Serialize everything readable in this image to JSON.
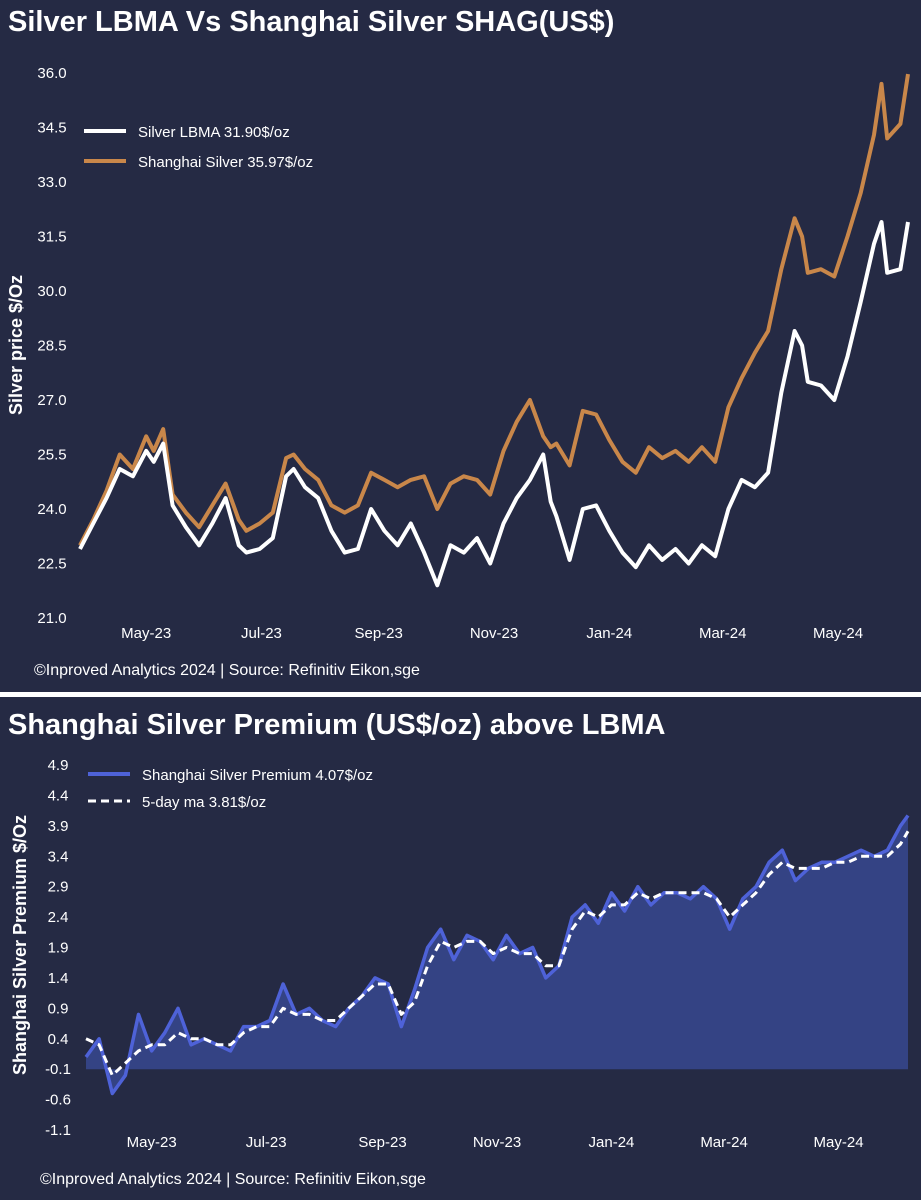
{
  "charts": [
    {
      "type": "line",
      "title": "Silver LBMA Vs Shanghai Silver SHAG(US$)",
      "ylabel": "Silver price $/Oz",
      "xlabel": "",
      "ylim": [
        21.0,
        36.0
      ],
      "yticks": [
        "21.0",
        "22.5",
        "24.0",
        "25.5",
        "27.0",
        "28.5",
        "30.0",
        "31.5",
        "33.0",
        "34.5",
        "36.0"
      ],
      "xticks": [
        "May-23",
        "Jul-23",
        "Sep-23",
        "Nov-23",
        "Jan-24",
        "Mar-24",
        "May-24"
      ],
      "legend": [
        "Silver LBMA 31.90$/oz",
        "Shanghai Silver 35.97$/oz"
      ],
      "source": "©Inproved Analytics 2024 | Source: Refinitiv Eikon,sge"
    },
    {
      "type": "area",
      "title": "Shanghai Silver Premium (US$/oz) above LBMA",
      "ylabel": "Shanghai Silver Premium $/Oz",
      "xlabel": "",
      "ylim": [
        -1.1,
        4.9
      ],
      "yticks": [
        "-1.1",
        "-0.6",
        "-0.1",
        "0.4",
        "0.9",
        "1.4",
        "1.9",
        "2.4",
        "2.9",
        "3.4",
        "3.9",
        "4.4",
        "4.9"
      ],
      "xticks": [
        "May-23",
        "Jul-23",
        "Sep-23",
        "Nov-23",
        "Jan-24",
        "Mar-24",
        "May-24"
      ],
      "legend": [
        "Shanghai Silver Premium 4.07$/oz",
        "5-day ma 3.81$/oz"
      ],
      "source": "©Inproved Analytics 2024 | Source: Refinitiv Eikon,sge"
    }
  ],
  "chart_data": [
    {
      "type": "line",
      "title": "Silver LBMA Vs Shanghai Silver SHAG(US$)",
      "xlabel": "",
      "ylabel": "Silver price $/Oz",
      "ylim": [
        21.0,
        36.0
      ],
      "x_range": [
        "2023-03-27",
        "2024-06-07"
      ],
      "x_ticks": [
        "May-23",
        "Jul-23",
        "Sep-23",
        "Nov-23",
        "Jan-24",
        "Mar-24",
        "May-24"
      ],
      "colors": {
        "lbma": "#ffffff",
        "shanghai": "#c9874a"
      },
      "series": [
        {
          "name": "Silver LBMA 31.90$/oz",
          "x": [
            "2023-03-27",
            "2023-04-03",
            "2023-04-10",
            "2023-04-17",
            "2023-04-24",
            "2023-05-01",
            "2023-05-05",
            "2023-05-10",
            "2023-05-15",
            "2023-05-22",
            "2023-05-29",
            "2023-06-05",
            "2023-06-12",
            "2023-06-19",
            "2023-06-23",
            "2023-06-30",
            "2023-07-07",
            "2023-07-14",
            "2023-07-18",
            "2023-07-24",
            "2023-07-31",
            "2023-08-07",
            "2023-08-14",
            "2023-08-21",
            "2023-08-28",
            "2023-09-04",
            "2023-09-11",
            "2023-09-18",
            "2023-09-25",
            "2023-10-02",
            "2023-10-09",
            "2023-10-16",
            "2023-10-23",
            "2023-10-30",
            "2023-11-06",
            "2023-11-13",
            "2023-11-20",
            "2023-11-27",
            "2023-12-01",
            "2023-12-04",
            "2023-12-11",
            "2023-12-18",
            "2023-12-25",
            "2024-01-01",
            "2024-01-08",
            "2024-01-15",
            "2024-01-22",
            "2024-01-29",
            "2024-02-05",
            "2024-02-12",
            "2024-02-19",
            "2024-02-26",
            "2024-03-04",
            "2024-03-11",
            "2024-03-18",
            "2024-03-25",
            "2024-04-01",
            "2024-04-08",
            "2024-04-12",
            "2024-04-15",
            "2024-04-22",
            "2024-04-29",
            "2024-05-06",
            "2024-05-13",
            "2024-05-20",
            "2024-05-24",
            "2024-05-27",
            "2024-06-03",
            "2024-06-07"
          ],
          "values": [
            22.9,
            23.6,
            24.3,
            25.1,
            24.9,
            25.6,
            25.3,
            25.8,
            24.1,
            23.5,
            23.0,
            23.6,
            24.3,
            23.0,
            22.8,
            22.9,
            23.2,
            24.9,
            25.1,
            24.6,
            24.3,
            23.4,
            22.8,
            22.9,
            24.0,
            23.4,
            23.0,
            23.6,
            22.8,
            21.9,
            23.0,
            22.8,
            23.2,
            22.5,
            23.6,
            24.3,
            24.8,
            25.5,
            24.2,
            23.8,
            22.6,
            24.0,
            24.1,
            23.4,
            22.8,
            22.4,
            23.0,
            22.6,
            22.9,
            22.5,
            23.0,
            22.7,
            24.0,
            24.8,
            24.6,
            25.0,
            27.2,
            28.9,
            28.5,
            27.5,
            27.4,
            27.0,
            28.2,
            29.7,
            31.3,
            31.9,
            30.5,
            30.6,
            31.9
          ]
        },
        {
          "name": "Shanghai Silver 35.97$/oz",
          "x": [
            "2023-03-27",
            "2023-04-03",
            "2023-04-10",
            "2023-04-17",
            "2023-04-24",
            "2023-05-01",
            "2023-05-05",
            "2023-05-10",
            "2023-05-15",
            "2023-05-22",
            "2023-05-29",
            "2023-06-05",
            "2023-06-12",
            "2023-06-19",
            "2023-06-23",
            "2023-06-30",
            "2023-07-07",
            "2023-07-14",
            "2023-07-18",
            "2023-07-24",
            "2023-07-31",
            "2023-08-07",
            "2023-08-14",
            "2023-08-21",
            "2023-08-28",
            "2023-09-04",
            "2023-09-11",
            "2023-09-18",
            "2023-09-25",
            "2023-10-02",
            "2023-10-09",
            "2023-10-16",
            "2023-10-23",
            "2023-10-30",
            "2023-11-06",
            "2023-11-13",
            "2023-11-20",
            "2023-11-27",
            "2023-12-01",
            "2023-12-04",
            "2023-12-11",
            "2023-12-18",
            "2023-12-25",
            "2024-01-01",
            "2024-01-08",
            "2024-01-15",
            "2024-01-22",
            "2024-01-29",
            "2024-02-05",
            "2024-02-12",
            "2024-02-19",
            "2024-02-26",
            "2024-03-04",
            "2024-03-11",
            "2024-03-18",
            "2024-03-25",
            "2024-04-01",
            "2024-04-08",
            "2024-04-12",
            "2024-04-15",
            "2024-04-22",
            "2024-04-29",
            "2024-05-06",
            "2024-05-13",
            "2024-05-20",
            "2024-05-24",
            "2024-05-27",
            "2024-06-03",
            "2024-06-07"
          ],
          "values": [
            23.0,
            23.7,
            24.5,
            25.5,
            25.1,
            26.0,
            25.6,
            26.2,
            24.4,
            23.9,
            23.5,
            24.1,
            24.7,
            23.7,
            23.4,
            23.6,
            23.9,
            25.4,
            25.5,
            25.1,
            24.8,
            24.1,
            23.9,
            24.1,
            25.0,
            24.8,
            24.6,
            24.8,
            24.9,
            24.0,
            24.7,
            24.9,
            24.8,
            24.4,
            25.6,
            26.4,
            27.0,
            26.0,
            25.7,
            25.8,
            25.2,
            26.7,
            26.6,
            25.9,
            25.3,
            25.0,
            25.7,
            25.4,
            25.6,
            25.3,
            25.7,
            25.3,
            26.8,
            27.6,
            28.3,
            28.9,
            30.6,
            32.0,
            31.5,
            30.5,
            30.6,
            30.4,
            31.5,
            32.7,
            34.3,
            35.7,
            34.2,
            34.6,
            35.97
          ]
        }
      ]
    },
    {
      "type": "area",
      "title": "Shanghai Silver Premium (US$/oz) above LBMA",
      "xlabel": "",
      "ylabel": "Shanghai Silver Premium $/Oz",
      "ylim": [
        -1.1,
        4.9
      ],
      "x_range": [
        "2023-03-27",
        "2024-06-07"
      ],
      "x_ticks": [
        "May-23",
        "Jul-23",
        "Sep-23",
        "Nov-23",
        "Jan-24",
        "Mar-24",
        "May-24"
      ],
      "colors": {
        "premium": "#4e62d8",
        "area": "#344384",
        "ma": "#ffffff"
      },
      "series": [
        {
          "name": "Shanghai Silver Premium 4.07$/oz",
          "x": [
            "2023-03-27",
            "2023-04-03",
            "2023-04-10",
            "2023-04-17",
            "2023-04-24",
            "2023-05-01",
            "2023-05-08",
            "2023-05-15",
            "2023-05-22",
            "2023-05-29",
            "2023-06-05",
            "2023-06-12",
            "2023-06-19",
            "2023-06-26",
            "2023-07-03",
            "2023-07-10",
            "2023-07-17",
            "2023-07-24",
            "2023-07-31",
            "2023-08-07",
            "2023-08-14",
            "2023-08-21",
            "2023-08-28",
            "2023-09-04",
            "2023-09-11",
            "2023-09-18",
            "2023-09-25",
            "2023-10-02",
            "2023-10-09",
            "2023-10-16",
            "2023-10-23",
            "2023-10-30",
            "2023-11-06",
            "2023-11-13",
            "2023-11-20",
            "2023-11-27",
            "2023-12-04",
            "2023-12-11",
            "2023-12-18",
            "2023-12-25",
            "2024-01-01",
            "2024-01-08",
            "2024-01-15",
            "2024-01-22",
            "2024-01-29",
            "2024-02-05",
            "2024-02-12",
            "2024-02-19",
            "2024-02-26",
            "2024-03-04",
            "2024-03-11",
            "2024-03-18",
            "2024-03-25",
            "2024-04-01",
            "2024-04-08",
            "2024-04-15",
            "2024-04-22",
            "2024-04-29",
            "2024-05-06",
            "2024-05-13",
            "2024-05-20",
            "2024-05-27",
            "2024-06-03",
            "2024-06-07"
          ],
          "values": [
            0.1,
            0.4,
            -0.5,
            -0.2,
            0.8,
            0.2,
            0.5,
            0.9,
            0.3,
            0.4,
            0.3,
            0.2,
            0.6,
            0.6,
            0.7,
            1.3,
            0.8,
            0.9,
            0.7,
            0.6,
            0.9,
            1.1,
            1.4,
            1.3,
            0.6,
            1.2,
            1.9,
            2.2,
            1.7,
            2.1,
            2.0,
            1.7,
            2.1,
            1.8,
            1.9,
            1.4,
            1.6,
            2.4,
            2.6,
            2.3,
            2.8,
            2.5,
            2.9,
            2.6,
            2.8,
            2.8,
            2.7,
            2.9,
            2.7,
            2.2,
            2.7,
            2.9,
            3.3,
            3.5,
            3.0,
            3.2,
            3.3,
            3.3,
            3.4,
            3.5,
            3.4,
            3.5,
            3.9,
            4.07
          ]
        },
        {
          "name": "5-day ma 3.81$/oz",
          "x": [
            "2023-03-27",
            "2023-04-03",
            "2023-04-10",
            "2023-04-17",
            "2023-04-24",
            "2023-05-01",
            "2023-05-08",
            "2023-05-15",
            "2023-05-22",
            "2023-05-29",
            "2023-06-05",
            "2023-06-12",
            "2023-06-19",
            "2023-06-26",
            "2023-07-03",
            "2023-07-10",
            "2023-07-17",
            "2023-07-24",
            "2023-07-31",
            "2023-08-07",
            "2023-08-14",
            "2023-08-21",
            "2023-08-28",
            "2023-09-04",
            "2023-09-11",
            "2023-09-18",
            "2023-09-25",
            "2023-10-02",
            "2023-10-09",
            "2023-10-16",
            "2023-10-23",
            "2023-10-30",
            "2023-11-06",
            "2023-11-13",
            "2023-11-20",
            "2023-11-27",
            "2023-12-04",
            "2023-12-11",
            "2023-12-18",
            "2023-12-25",
            "2024-01-01",
            "2024-01-08",
            "2024-01-15",
            "2024-01-22",
            "2024-01-29",
            "2024-02-05",
            "2024-02-12",
            "2024-02-19",
            "2024-02-26",
            "2024-03-04",
            "2024-03-11",
            "2024-03-18",
            "2024-03-25",
            "2024-04-01",
            "2024-04-08",
            "2024-04-15",
            "2024-04-22",
            "2024-04-29",
            "2024-05-06",
            "2024-05-13",
            "2024-05-20",
            "2024-05-27",
            "2024-06-03",
            "2024-06-07"
          ],
          "values": [
            0.4,
            0.3,
            -0.2,
            0.0,
            0.2,
            0.3,
            0.3,
            0.5,
            0.4,
            0.4,
            0.3,
            0.3,
            0.5,
            0.6,
            0.6,
            0.9,
            0.8,
            0.8,
            0.7,
            0.7,
            0.9,
            1.1,
            1.3,
            1.3,
            0.8,
            1.0,
            1.6,
            2.0,
            1.9,
            2.0,
            2.0,
            1.8,
            1.9,
            1.8,
            1.8,
            1.6,
            1.6,
            2.2,
            2.5,
            2.4,
            2.6,
            2.6,
            2.8,
            2.7,
            2.8,
            2.8,
            2.8,
            2.8,
            2.7,
            2.4,
            2.6,
            2.8,
            3.1,
            3.3,
            3.2,
            3.2,
            3.2,
            3.3,
            3.3,
            3.4,
            3.4,
            3.4,
            3.6,
            3.81
          ]
        }
      ]
    }
  ]
}
